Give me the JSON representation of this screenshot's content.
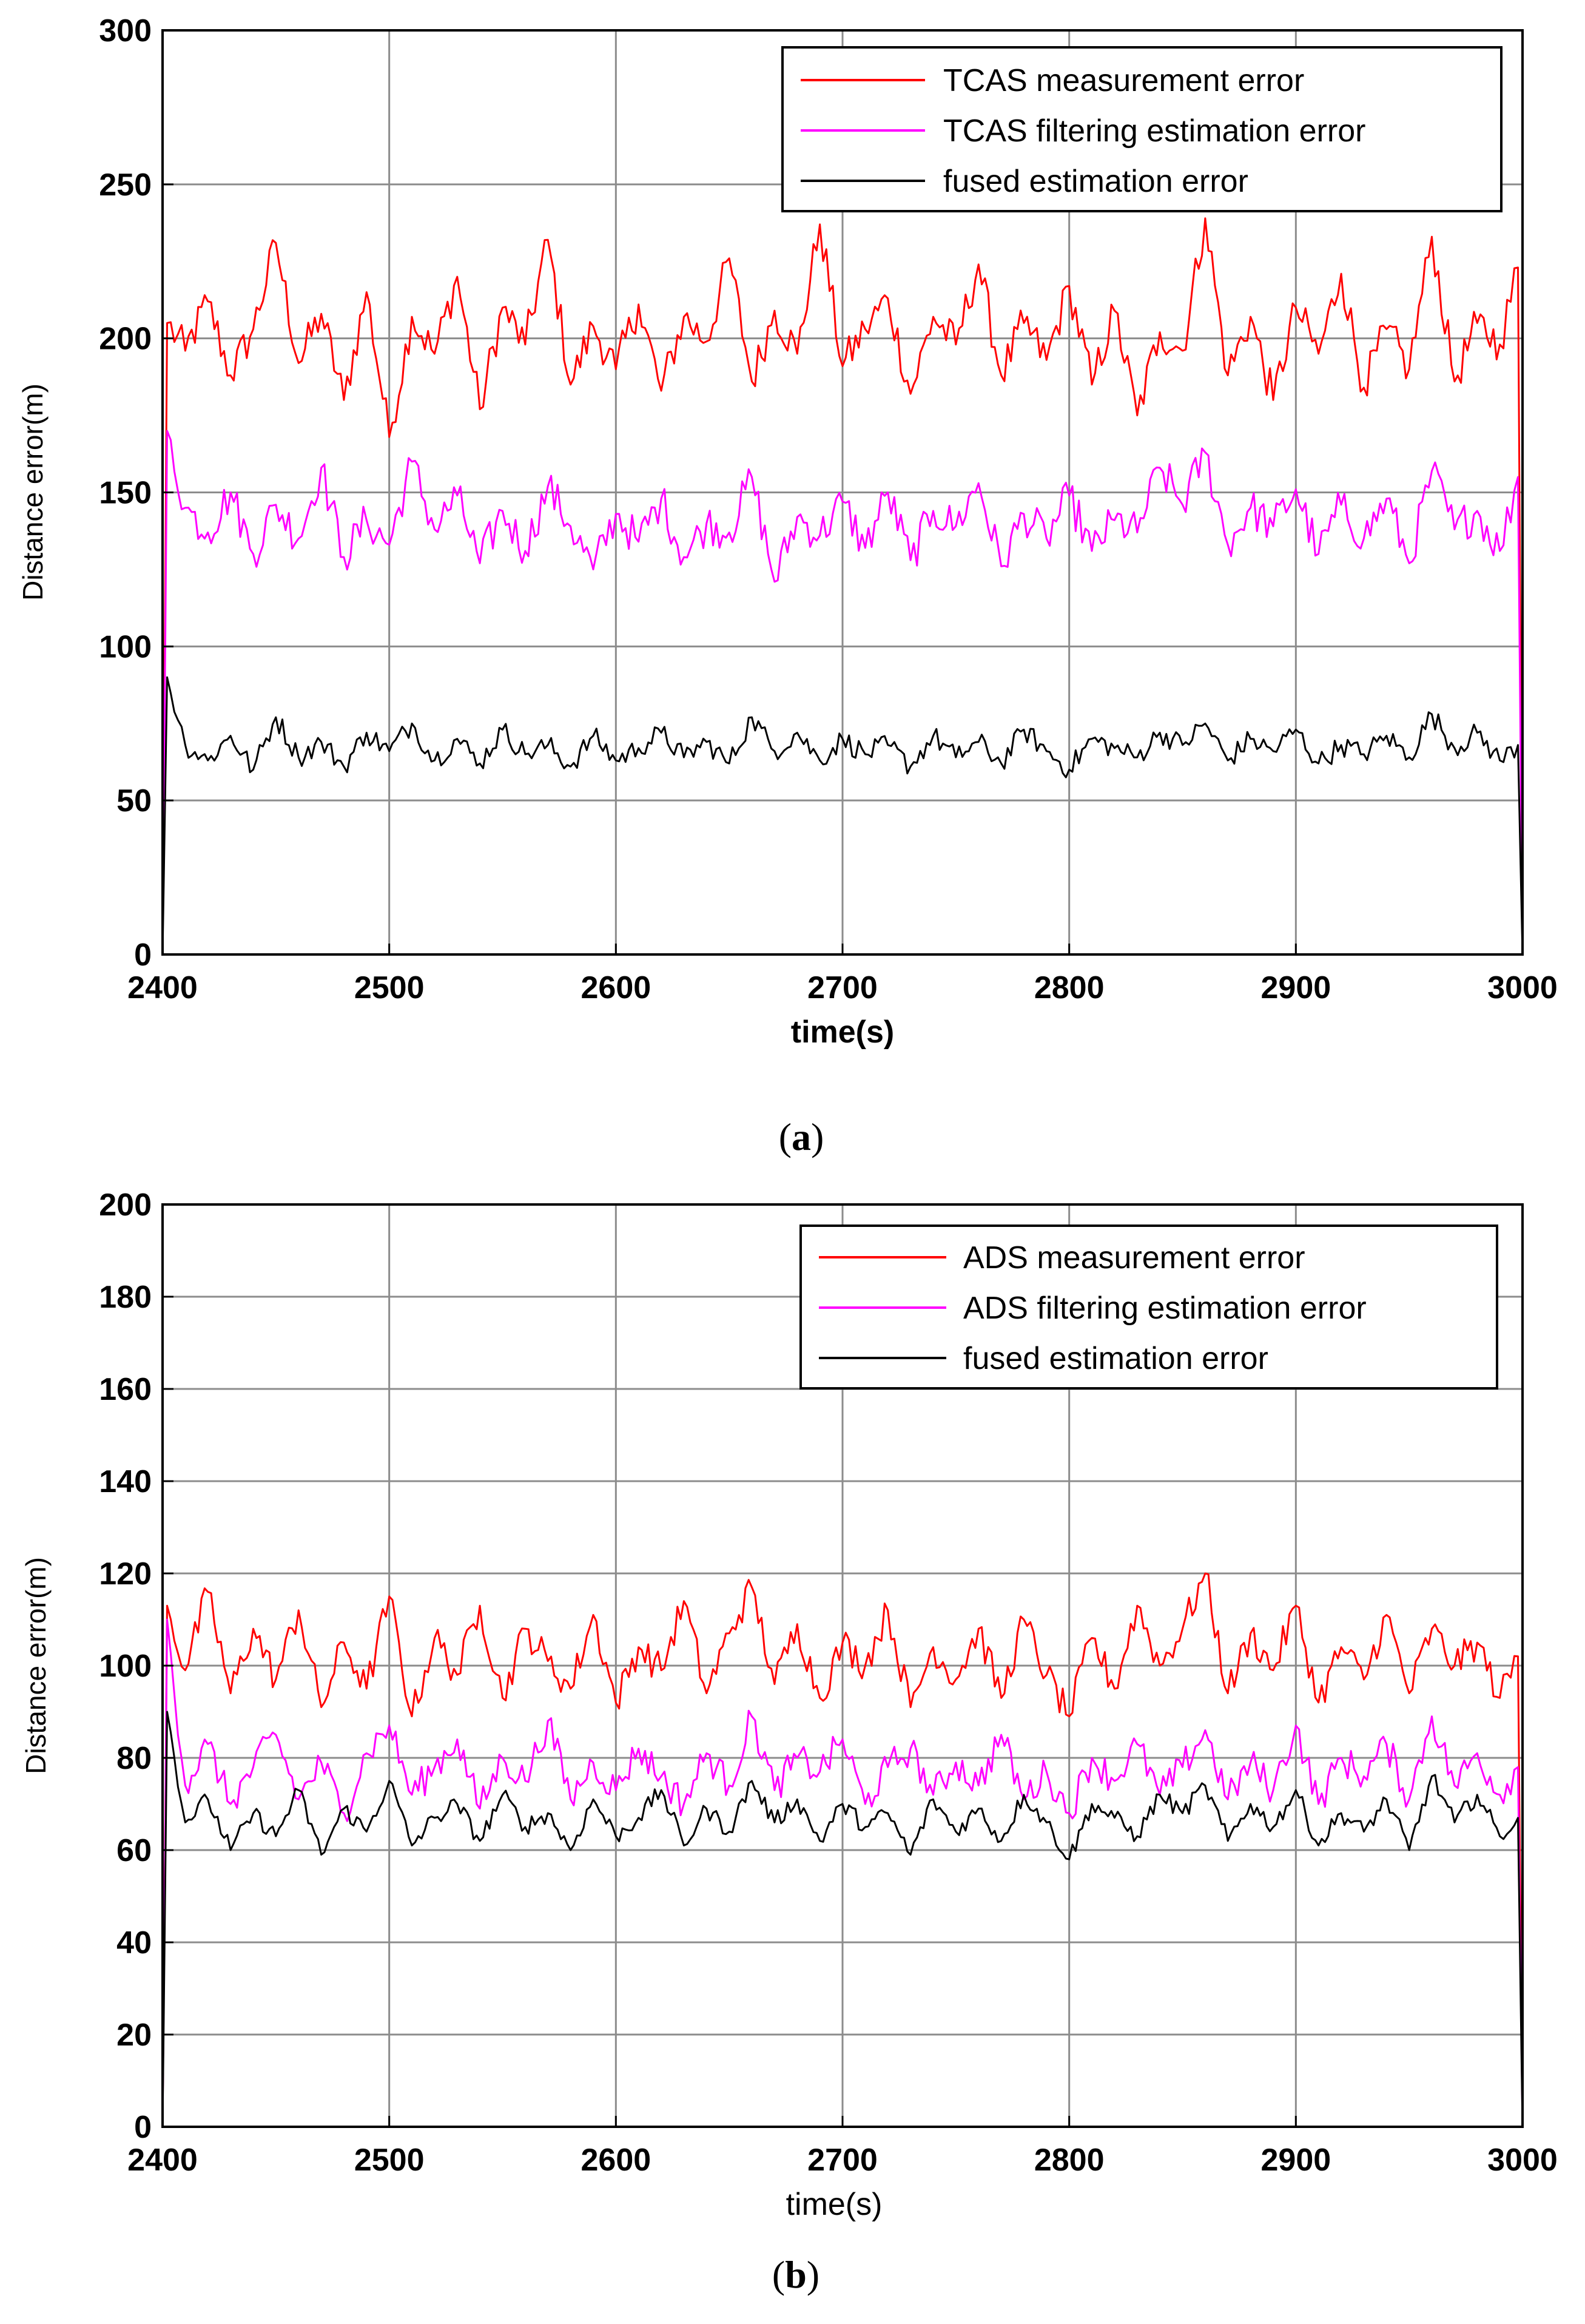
{
  "colors": {
    "series_0": "#ff0000",
    "series_1": "#ff00ff",
    "series_2": "#000000",
    "grid": "#8c8c8c",
    "axes": "#000000",
    "background": "#ffffff"
  },
  "chart_data": [
    {
      "type": "line",
      "caption": "(a)",
      "caption_letter": "a",
      "xlabel": "time(s)",
      "ylabel": "Distance error(m)",
      "xlim": [
        2400,
        3000
      ],
      "ylim": [
        0,
        300
      ],
      "xticks": [
        2400,
        2500,
        2600,
        2700,
        2800,
        2900,
        3000
      ],
      "yticks": [
        0,
        50,
        100,
        150,
        200,
        250,
        300
      ],
      "grid": true,
      "legend_position": "top-right",
      "series": [
        {
          "name": "TCAS measurement error",
          "color": "#ff0000",
          "x": [
            2400,
            2402,
            2410,
            2420,
            2430,
            2440,
            2450,
            2460,
            2470,
            2480,
            2490,
            2500,
            2510,
            2520,
            2530,
            2540,
            2550,
            2560,
            2570,
            2580,
            2590,
            2600,
            2610,
            2620,
            2630,
            2640,
            2650,
            2660,
            2670,
            2680,
            2690,
            2700,
            2710,
            2720,
            2730,
            2740,
            2750,
            2760,
            2770,
            2780,
            2790,
            2800,
            2810,
            2820,
            2830,
            2840,
            2850,
            2860,
            2870,
            2880,
            2890,
            2900,
            2910,
            2920,
            2930,
            2940,
            2950,
            2960,
            2970,
            2980,
            2990,
            2998,
            3000
          ],
          "y": [
            0,
            205,
            196,
            212,
            188,
            203,
            231,
            192,
            208,
            180,
            215,
            168,
            207,
            195,
            220,
            177,
            210,
            198,
            232,
            185,
            204,
            190,
            211,
            183,
            207,
            199,
            226,
            186,
            209,
            195,
            237,
            191,
            203,
            213,
            182,
            207,
            198,
            224,
            188,
            205,
            193,
            217,
            185,
            209,
            175,
            202,
            196,
            239,
            188,
            207,
            180,
            210,
            195,
            221,
            184,
            203,
            190,
            233,
            186,
            205,
            198,
            223,
            0
          ]
        },
        {
          "name": "TCAS filtering estimation error",
          "color": "#ff00ff",
          "x": [
            2400,
            2402,
            2410,
            2420,
            2430,
            2440,
            2450,
            2460,
            2470,
            2480,
            2490,
            2500,
            2510,
            2520,
            2530,
            2540,
            2550,
            2560,
            2570,
            2580,
            2590,
            2600,
            2610,
            2620,
            2630,
            2640,
            2650,
            2660,
            2670,
            2680,
            2690,
            2700,
            2710,
            2720,
            2730,
            2740,
            2750,
            2760,
            2770,
            2780,
            2790,
            2800,
            2810,
            2820,
            2830,
            2840,
            2850,
            2860,
            2870,
            2880,
            2890,
            2900,
            2910,
            2920,
            2930,
            2940,
            2950,
            2960,
            2970,
            2980,
            2990,
            2998,
            3000
          ],
          "y": [
            0,
            170,
            145,
            137,
            150,
            130,
            146,
            135,
            158,
            129,
            141,
            133,
            160,
            138,
            149,
            127,
            144,
            131,
            152,
            139,
            125,
            143,
            134,
            148,
            129,
            140,
            137,
            155,
            121,
            142,
            136,
            147,
            132,
            150,
            128,
            144,
            139,
            153,
            126,
            143,
            135,
            149,
            131,
            141,
            137,
            158,
            146,
            163,
            133,
            145,
            139,
            151,
            130,
            146,
            135,
            148,
            127,
            157,
            138,
            144,
            131,
            155,
            0
          ]
        },
        {
          "name": "fused estimation error",
          "color": "#000000",
          "x": [
            2400,
            2402,
            2410,
            2420,
            2430,
            2440,
            2450,
            2460,
            2470,
            2480,
            2490,
            2500,
            2510,
            2520,
            2530,
            2540,
            2550,
            2560,
            2570,
            2580,
            2590,
            2600,
            2610,
            2620,
            2630,
            2640,
            2650,
            2660,
            2670,
            2680,
            2690,
            2700,
            2710,
            2720,
            2730,
            2740,
            2750,
            2760,
            2770,
            2780,
            2790,
            2800,
            2810,
            2820,
            2830,
            2840,
            2850,
            2860,
            2870,
            2880,
            2890,
            2900,
            2910,
            2920,
            2930,
            2940,
            2950,
            2960,
            2970,
            2980,
            2990,
            2998,
            3000
          ],
          "y": [
            0,
            90,
            68,
            63,
            71,
            60,
            77,
            64,
            69,
            61,
            72,
            66,
            75,
            63,
            70,
            62,
            73,
            65,
            68,
            61,
            71,
            63,
            67,
            72,
            64,
            69,
            62,
            77,
            66,
            72,
            63,
            70,
            65,
            68,
            61,
            71,
            64,
            69,
            62,
            73,
            66,
            60,
            70,
            67,
            64,
            72,
            68,
            75,
            63,
            70,
            66,
            73,
            62,
            68,
            65,
            71,
            64,
            78,
            67,
            72,
            63,
            68,
            0
          ]
        }
      ]
    },
    {
      "type": "line",
      "caption": "(b)",
      "caption_letter": "b",
      "xlabel": "time(s)",
      "ylabel": "Distance error(m)",
      "xlim": [
        2400,
        3000
      ],
      "ylim": [
        0,
        200
      ],
      "xticks": [
        2400,
        2500,
        2600,
        2700,
        2800,
        2900,
        3000
      ],
      "yticks": [
        0,
        20,
        40,
        60,
        80,
        100,
        120,
        140,
        160,
        180,
        200
      ],
      "grid": true,
      "legend_position": "top-right",
      "series": [
        {
          "name": "ADS measurement error",
          "color": "#ff0000",
          "x": [
            2400,
            2402,
            2410,
            2420,
            2430,
            2440,
            2450,
            2460,
            2470,
            2480,
            2490,
            2500,
            2510,
            2520,
            2530,
            2540,
            2550,
            2560,
            2570,
            2580,
            2590,
            2600,
            2610,
            2620,
            2630,
            2640,
            2650,
            2660,
            2670,
            2680,
            2690,
            2700,
            2710,
            2720,
            2730,
            2740,
            2750,
            2760,
            2770,
            2780,
            2790,
            2800,
            2810,
            2820,
            2830,
            2840,
            2850,
            2860,
            2870,
            2880,
            2890,
            2900,
            2910,
            2920,
            2930,
            2940,
            2950,
            2960,
            2970,
            2980,
            2990,
            2998,
            3000
          ],
          "y": [
            0,
            113,
            99,
            116,
            94,
            108,
            97,
            112,
            91,
            105,
            95,
            115,
            89,
            106,
            98,
            113,
            93,
            108,
            101,
            95,
            111,
            92,
            104,
            99,
            114,
            94,
            107,
            117,
            96,
            109,
            93,
            105,
            100,
            112,
            91,
            104,
            97,
            108,
            93,
            110,
            98,
            89,
            106,
            95,
            113,
            100,
            108,
            120,
            94,
            107,
            99,
            113,
            92,
            104,
            97,
            111,
            94,
            108,
            100,
            105,
            93,
            102,
            0
          ]
        },
        {
          "name": "ADS filtering estimation error",
          "color": "#ff00ff",
          "x": [
            2400,
            2402,
            2410,
            2420,
            2430,
            2440,
            2450,
            2460,
            2470,
            2480,
            2490,
            2500,
            2510,
            2520,
            2530,
            2540,
            2550,
            2560,
            2570,
            2580,
            2590,
            2600,
            2610,
            2620,
            2630,
            2640,
            2650,
            2660,
            2670,
            2680,
            2690,
            2700,
            2710,
            2720,
            2730,
            2740,
            2750,
            2760,
            2770,
            2780,
            2790,
            2800,
            2810,
            2820,
            2830,
            2840,
            2850,
            2860,
            2870,
            2880,
            2890,
            2900,
            2910,
            2920,
            2930,
            2940,
            2950,
            2960,
            2970,
            2980,
            2990,
            2998,
            3000
          ],
          "y": [
            0,
            110,
            74,
            83,
            70,
            78,
            85,
            71,
            79,
            68,
            81,
            87,
            72,
            78,
            84,
            69,
            80,
            75,
            88,
            71,
            79,
            73,
            82,
            76,
            70,
            81,
            74,
            89,
            73,
            80,
            77,
            84,
            70,
            78,
            82,
            72,
            79,
            74,
            85,
            71,
            77,
            68,
            80,
            75,
            83,
            72,
            78,
            86,
            71,
            79,
            73,
            87,
            70,
            80,
            76,
            83,
            71,
            89,
            74,
            81,
            72,
            78,
            0
          ]
        },
        {
          "name": "fused estimation error",
          "color": "#000000",
          "x": [
            2400,
            2402,
            2410,
            2420,
            2430,
            2440,
            2450,
            2460,
            2470,
            2480,
            2490,
            2500,
            2510,
            2520,
            2530,
            2540,
            2550,
            2560,
            2570,
            2580,
            2590,
            2600,
            2610,
            2620,
            2630,
            2640,
            2650,
            2660,
            2670,
            2680,
            2690,
            2700,
            2710,
            2720,
            2730,
            2740,
            2750,
            2760,
            2770,
            2780,
            2790,
            2800,
            2810,
            2820,
            2830,
            2840,
            2850,
            2860,
            2870,
            2880,
            2890,
            2900,
            2910,
            2920,
            2930,
            2940,
            2950,
            2960,
            2970,
            2980,
            2990,
            2998,
            3000
          ],
          "y": [
            0,
            90,
            66,
            71,
            60,
            68,
            63,
            73,
            59,
            69,
            64,
            75,
            61,
            67,
            70,
            62,
            72,
            65,
            68,
            60,
            71,
            63,
            67,
            73,
            61,
            69,
            64,
            75,
            66,
            71,
            62,
            70,
            65,
            68,
            59,
            71,
            64,
            69,
            62,
            72,
            66,
            58,
            70,
            67,
            63,
            72,
            68,
            74,
            62,
            70,
            65,
            73,
            61,
            68,
            64,
            71,
            60,
            76,
            66,
            72,
            63,
            67,
            0
          ]
        }
      ]
    }
  ]
}
